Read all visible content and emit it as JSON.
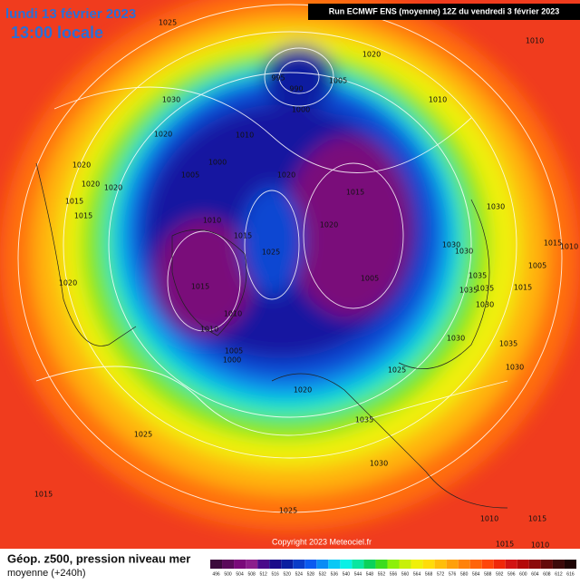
{
  "header": {
    "date": "lundi 13 février 2023",
    "time": "13:00 locale",
    "run": "Run ECMWF ENS (moyenne) 12Z du vendredi 3 février 2023"
  },
  "footer": {
    "title": "Géop. z500, pression niveau mer",
    "subtitle": "moyenne  (+240h)",
    "copyright": "Copyright 2023 Meteociel.fr"
  },
  "isobar_labels": [
    "1025",
    "1020",
    "1010",
    "995",
    "990",
    "1005",
    "1000",
    "1030",
    "1010",
    "1020",
    "1010",
    "1000",
    "1005",
    "1020",
    "1020",
    "1020",
    "1015",
    "1015",
    "1020",
    "1015",
    "1010",
    "1015",
    "1020",
    "1025",
    "1030",
    "1030",
    "1030",
    "1015",
    "1010",
    "1005",
    "1035",
    "1035",
    "1035",
    "1030",
    "1005",
    "1015",
    "1020",
    "1010",
    "1010",
    "1005",
    "1000",
    "1015",
    "1030",
    "1035",
    "1030",
    "1025",
    "1020",
    "1035",
    "1030",
    "1025",
    "1015",
    "1025",
    "1010",
    "1015",
    "1015",
    "1010"
  ],
  "colorbar": {
    "labels": [
      496,
      500,
      504,
      508,
      512,
      516,
      520,
      524,
      528,
      532,
      536,
      540,
      544,
      548,
      552,
      556,
      560,
      564,
      568,
      572,
      576,
      580,
      584,
      588,
      592,
      596,
      600,
      604,
      608,
      612,
      616
    ],
    "colors": [
      "#3c0a3c",
      "#5a0a5a",
      "#7a0a7a",
      "#8c1e8c",
      "#4a0a8a",
      "#1a0a8a",
      "#0a1ea0",
      "#0a3cc8",
      "#0a5af0",
      "#0a8cf5",
      "#0ac8f5",
      "#0af0e6",
      "#0ae6a0",
      "#0ad25a",
      "#3cdc1e",
      "#8cf00a",
      "#c8f00a",
      "#f0f00a",
      "#ffdc0a",
      "#ffbe0a",
      "#ffa00a",
      "#ff820a",
      "#ff640a",
      "#ff460a",
      "#f0280a",
      "#d21414",
      "#b40a0a",
      "#8c0a0a",
      "#640a0a",
      "#3c0a0a",
      "#1e0505"
    ]
  }
}
